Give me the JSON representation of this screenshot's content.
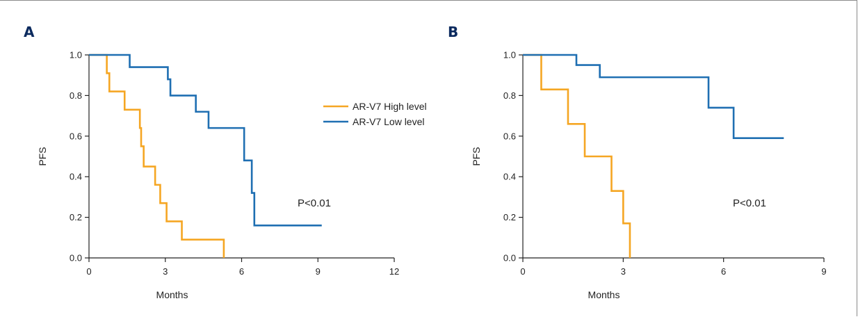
{
  "colors": {
    "high": "#F5A623",
    "low": "#1F6FB2"
  },
  "legend": {
    "high_label": "AR-V7 High level",
    "low_label": "AR-V7 Low level"
  },
  "chart_data": [
    {
      "panel_label": "A",
      "type": "line",
      "step": true,
      "xlabel": "Months",
      "ylabel": "PFS",
      "xlim": [
        0,
        12
      ],
      "ylim": [
        0,
        1
      ],
      "xticks": [
        "0",
        "3",
        "6",
        "9",
        "12"
      ],
      "yticks": [
        "0.0",
        "0.2",
        "0.4",
        "0.6",
        "0.8",
        "1.0"
      ],
      "annotation": "P<0.01",
      "series": [
        {
          "name": "AR-V7 High level",
          "color_key": "high",
          "points": [
            [
              0,
              1.0
            ],
            [
              0.7,
              0.91
            ],
            [
              0.8,
              0.82
            ],
            [
              1.4,
              0.73
            ],
            [
              2.0,
              0.64
            ],
            [
              2.05,
              0.55
            ],
            [
              2.15,
              0.45
            ],
            [
              2.6,
              0.36
            ],
            [
              2.8,
              0.27
            ],
            [
              3.05,
              0.18
            ],
            [
              3.65,
              0.09
            ],
            [
              5.3,
              0.0
            ]
          ]
        },
        {
          "name": "AR-V7 Low level",
          "color_key": "low",
          "points": [
            [
              0,
              1.0
            ],
            [
              1.6,
              0.94
            ],
            [
              3.1,
              0.88
            ],
            [
              3.2,
              0.8
            ],
            [
              4.2,
              0.72
            ],
            [
              4.7,
              0.64
            ],
            [
              6.1,
              0.48
            ],
            [
              6.4,
              0.32
            ],
            [
              6.5,
              0.16
            ],
            [
              9.15,
              0.16
            ]
          ]
        }
      ]
    },
    {
      "panel_label": "B",
      "type": "line",
      "step": true,
      "xlabel": "Months",
      "ylabel": "PFS",
      "xlim": [
        0,
        9
      ],
      "ylim": [
        0,
        1
      ],
      "xticks": [
        "0",
        "3",
        "6",
        "9"
      ],
      "yticks": [
        "0.0",
        "0.2",
        "0.4",
        "0.6",
        "0.8",
        "1.0"
      ],
      "annotation": "P<0.01",
      "series": [
        {
          "name": "AR-V7 High level",
          "color_key": "high",
          "points": [
            [
              0,
              1.0
            ],
            [
              0.55,
              0.83
            ],
            [
              1.35,
              0.66
            ],
            [
              1.85,
              0.5
            ],
            [
              2.65,
              0.33
            ],
            [
              3.0,
              0.17
            ],
            [
              3.2,
              0.0
            ]
          ]
        },
        {
          "name": "AR-V7 Low level",
          "color_key": "low",
          "points": [
            [
              0,
              1.0
            ],
            [
              1.6,
              0.95
            ],
            [
              2.3,
              0.89
            ],
            [
              5.55,
              0.74
            ],
            [
              6.3,
              0.59
            ],
            [
              7.8,
              0.59
            ]
          ]
        }
      ]
    }
  ]
}
